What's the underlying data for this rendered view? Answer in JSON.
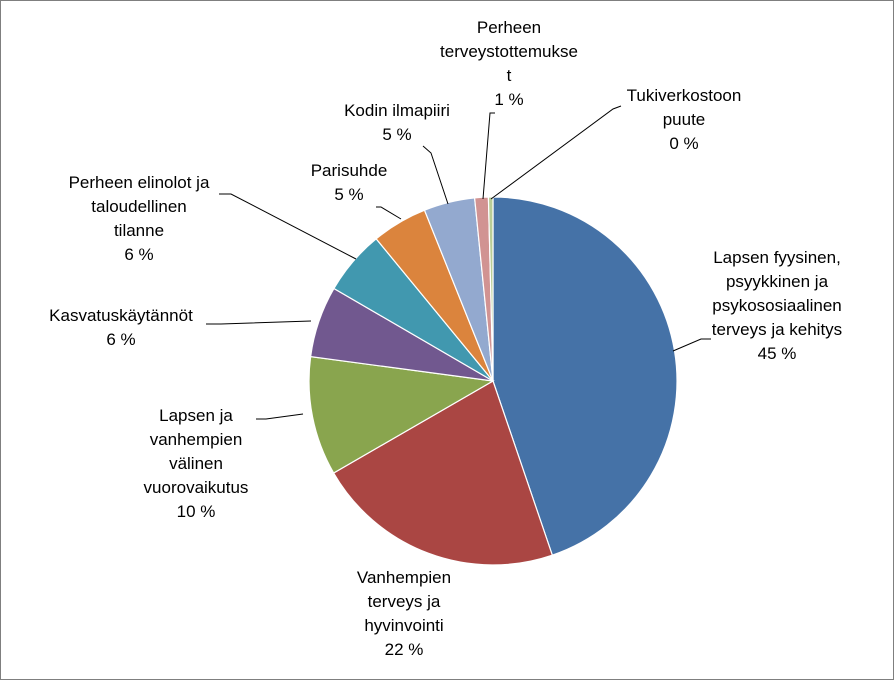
{
  "chart_data": {
    "type": "pie",
    "title": "",
    "slices": [
      {
        "label": [
          "Lapsen fyysinen,",
          "psyykkinen ja",
          "psykososiaalinen",
          "terveys ja kehitys"
        ],
        "value_label": "45 %",
        "value": 45.0,
        "color": "#4572A7"
      },
      {
        "label": [
          "Vanhempien",
          "terveys ja",
          "hyvinvointi"
        ],
        "value_label": "22 %",
        "value": 22.0,
        "color": "#AA4643"
      },
      {
        "label": [
          "Lapsen ja",
          "vanhempien",
          "välinen",
          "vuorovaikutus"
        ],
        "value_label": "10 %",
        "value": 10.5,
        "color": "#89A54E"
      },
      {
        "label": [
          "Kasvatuskäytännöt"
        ],
        "value_label": "6 %",
        "value": 6.3,
        "color": "#71588F"
      },
      {
        "label": [
          "Perheen elinolot ja",
          "taloudellinen",
          "tilanne"
        ],
        "value_label": "6 %",
        "value": 5.7,
        "color": "#4198AF"
      },
      {
        "label": [
          "Parisuhde"
        ],
        "value_label": "5 %",
        "value": 4.9,
        "color": "#DB843D"
      },
      {
        "label": [
          "Kodin ilmapiiri"
        ],
        "value_label": "5 %",
        "value": 4.5,
        "color": "#93A9CF"
      },
      {
        "label": [
          "Perheen",
          "terveystottemukse",
          "t"
        ],
        "value_label": "1 %",
        "value": 1.2,
        "color": "#D19392"
      },
      {
        "label": [
          "Tukiverkostoon",
          "puute"
        ],
        "value_label": "0 %",
        "value": 0.4,
        "color": "#B9CD96"
      }
    ]
  }
}
